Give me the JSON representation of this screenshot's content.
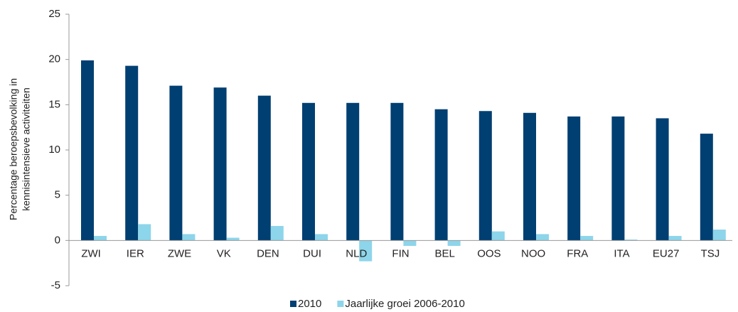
{
  "chart_data": {
    "type": "bar",
    "ylabel": [
      "Percentage beroepsbevolking in",
      "kennisintensieve activiteiten"
    ],
    "categories": [
      "ZWI",
      "IER",
      "ZWE",
      "VK",
      "DEN",
      "DUI",
      "NLD",
      "FIN",
      "BEL",
      "OOS",
      "NOO",
      "FRA",
      "ITA",
      "EU27",
      "TSJ"
    ],
    "series": [
      {
        "name": "2010",
        "color": "#003f72",
        "values": [
          19.9,
          19.3,
          17.1,
          16.9,
          16.0,
          15.2,
          15.2,
          15.2,
          14.5,
          14.3,
          14.1,
          13.7,
          13.7,
          13.5,
          11.8
        ]
      },
      {
        "name": "Jaarlijke groei 2006-2010",
        "color": "#8dd5ea",
        "values": [
          0.5,
          1.8,
          0.7,
          0.3,
          1.6,
          0.7,
          -2.3,
          -0.6,
          -0.6,
          1.0,
          0.7,
          0.5,
          0.1,
          0.5,
          1.2
        ]
      }
    ],
    "ylim": [
      -5,
      25
    ],
    "yticks": [
      -5,
      0,
      5,
      10,
      15,
      20,
      25
    ],
    "grid": false,
    "legend": "bottom"
  }
}
